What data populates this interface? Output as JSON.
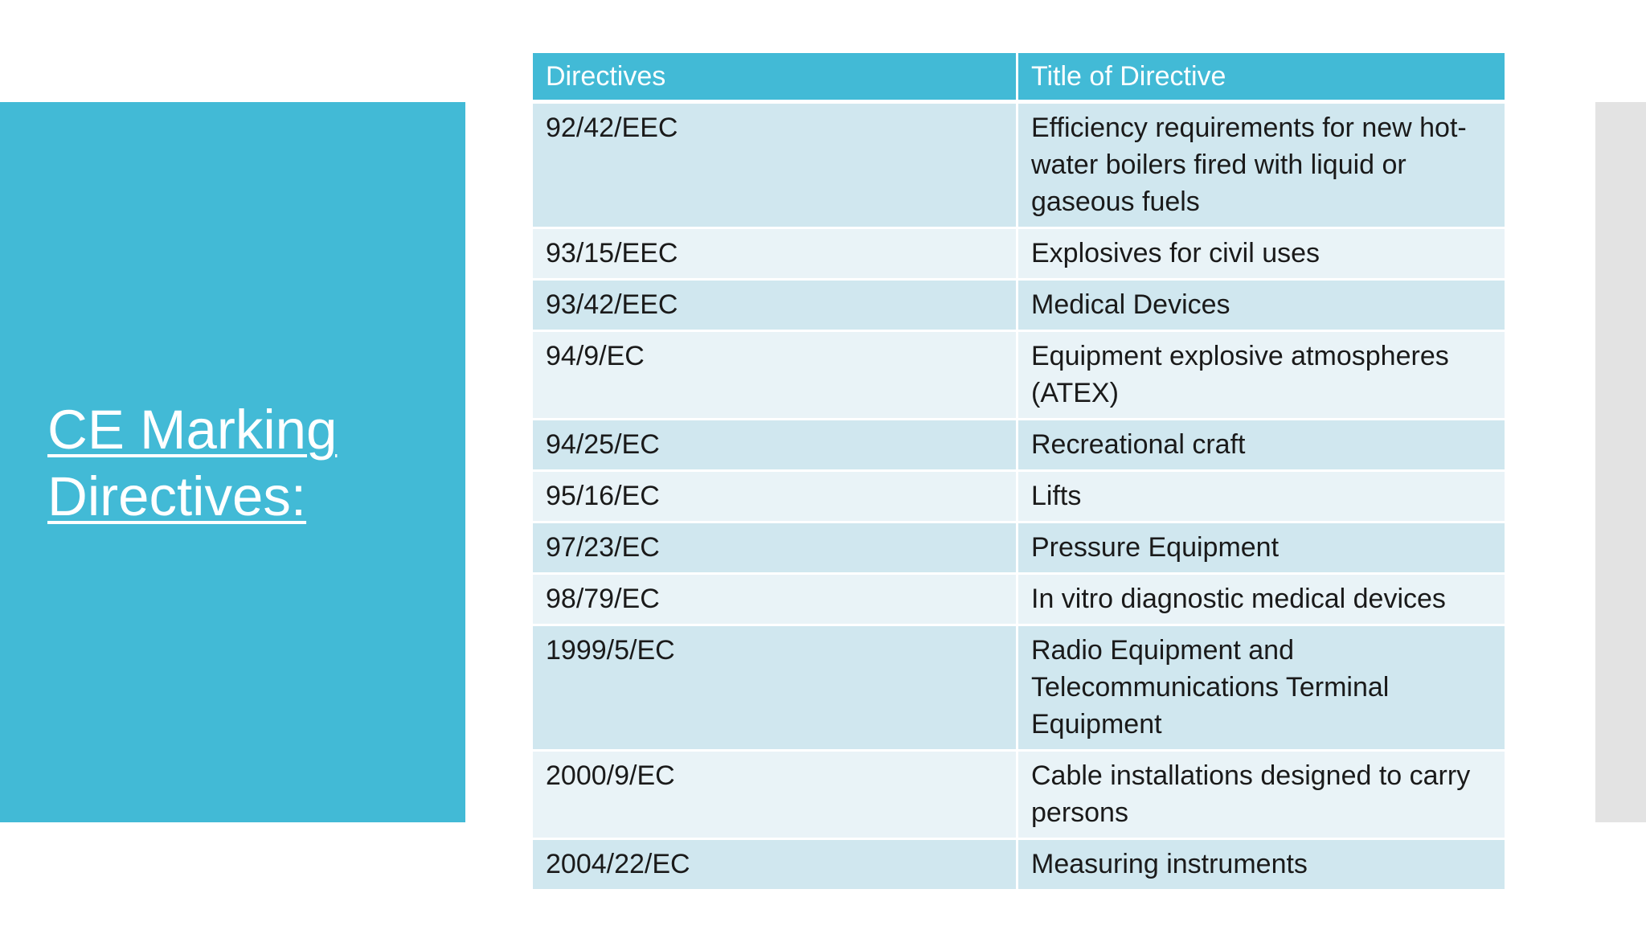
{
  "slide": {
    "title_line1": "CE Marking",
    "title_line2": "Directives:"
  },
  "table": {
    "headers": [
      "Directives",
      "Title of Directive"
    ],
    "rows": [
      {
        "directive": "92/42/EEC",
        "title": "Efficiency requirements for new hot- water boilers fired with liquid or gaseous fuels"
      },
      {
        "directive": "93/15/EEC",
        "title": "Explosives for civil uses"
      },
      {
        "directive": "93/42/EEC",
        "title": "Medical Devices"
      },
      {
        "directive": "94/9/EC",
        "title": "Equipment explosive atmospheres (ATEX)"
      },
      {
        "directive": "94/25/EC",
        "title": "Recreational craft"
      },
      {
        "directive": "95/16/EC",
        "title": "Lifts"
      },
      {
        "directive": "97/23/EC",
        "title": "Pressure Equipment"
      },
      {
        "directive": "98/79/EC",
        "title": "In vitro diagnostic medical devices"
      },
      {
        "directive": "1999/5/EC",
        "title": "Radio Equipment and Telecommunications Terminal Equipment"
      },
      {
        "directive": "2000/9/EC",
        "title": "Cable installations designed to carry persons"
      },
      {
        "directive": "2004/22/EC",
        "title": "Measuring instruments"
      }
    ]
  },
  "colors": {
    "accent": "#42bad6",
    "row_odd": "#d0e7ef",
    "row_even": "#e9f3f7",
    "side_band": "#e3e3e3"
  }
}
